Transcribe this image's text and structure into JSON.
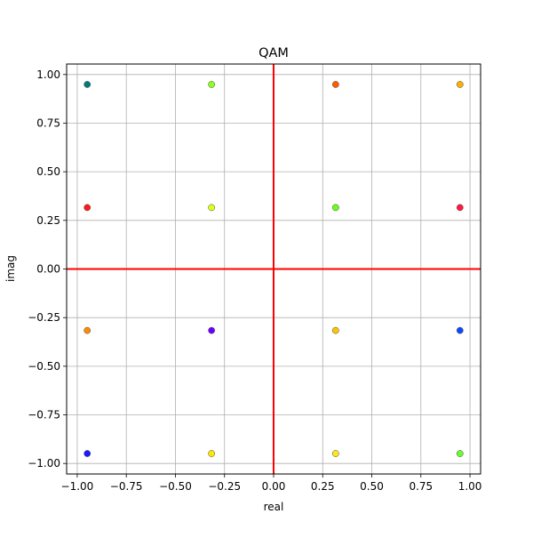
{
  "chart_data": {
    "type": "scatter",
    "title": "QAM",
    "xlabel": "real",
    "ylabel": "imag",
    "xlim": [
      -1.054,
      1.054
    ],
    "ylim": [
      -1.054,
      1.054
    ],
    "grid": true,
    "xticks": [
      -1.0,
      -0.75,
      -0.5,
      -0.25,
      0.0,
      0.25,
      0.5,
      0.75,
      1.0
    ],
    "xtick_labels": [
      "−1.00",
      "−0.75",
      "−0.50",
      "−0.25",
      "0.00",
      "0.25",
      "0.50",
      "0.75",
      "1.00"
    ],
    "yticks": [
      -1.0,
      -0.75,
      -0.5,
      -0.25,
      0.0,
      0.25,
      0.5,
      0.75,
      1.0
    ],
    "ytick_labels": [
      "−1.00",
      "−0.75",
      "−0.50",
      "−0.25",
      "0.00",
      "0.25",
      "0.50",
      "0.75",
      "1.00"
    ],
    "reference_lines": {
      "x": 0,
      "y": 0,
      "color": "#ff0000"
    },
    "points": [
      {
        "x": -0.949,
        "y": 0.949,
        "color": "#007a7a"
      },
      {
        "x": -0.316,
        "y": 0.949,
        "color": "#8cff1a"
      },
      {
        "x": 0.316,
        "y": 0.949,
        "color": "#ff5a00"
      },
      {
        "x": 0.949,
        "y": 0.949,
        "color": "#ffb000"
      },
      {
        "x": -0.949,
        "y": 0.316,
        "color": "#ff1a1a"
      },
      {
        "x": -0.316,
        "y": 0.316,
        "color": "#e0ff1a"
      },
      {
        "x": 0.316,
        "y": 0.316,
        "color": "#6aff1a"
      },
      {
        "x": 0.949,
        "y": 0.316,
        "color": "#ff1a3c"
      },
      {
        "x": -0.949,
        "y": -0.316,
        "color": "#ff8c00"
      },
      {
        "x": -0.316,
        "y": -0.316,
        "color": "#6a00ff"
      },
      {
        "x": 0.316,
        "y": -0.316,
        "color": "#ffc400"
      },
      {
        "x": 0.949,
        "y": -0.316,
        "color": "#0a4aff"
      },
      {
        "x": -0.949,
        "y": -0.949,
        "color": "#1a1aff"
      },
      {
        "x": -0.316,
        "y": -0.949,
        "color": "#ffe800"
      },
      {
        "x": 0.316,
        "y": -0.949,
        "color": "#ffe81a"
      },
      {
        "x": 0.949,
        "y": -0.949,
        "color": "#6aff2a"
      }
    ]
  }
}
